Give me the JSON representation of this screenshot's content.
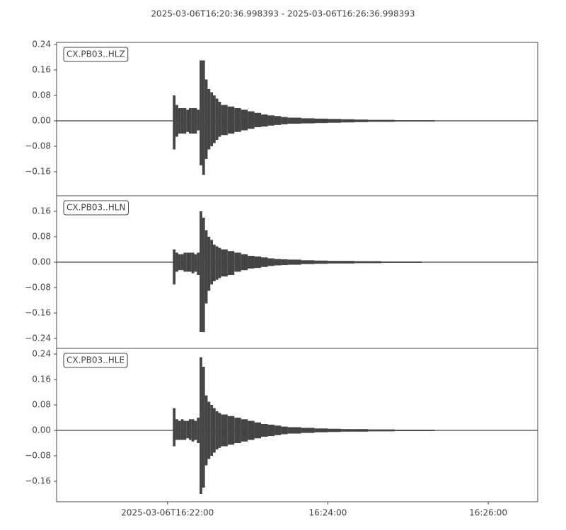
{
  "title": "2025-03-06T16:20:36.998393  -  2025-03-06T16:26:36.998393",
  "chart_data": [
    {
      "type": "waveform",
      "label": "CX.PB03..HLZ",
      "color": "#444444",
      "xlim": [
        "16:20:36.998393",
        "16:26:36.998393"
      ],
      "ylim": [
        -0.2356,
        0.2467
      ],
      "yticks": [
        {
          "value": -0.16,
          "label": "−0.16"
        },
        {
          "value": -0.08,
          "label": "−0.08"
        },
        {
          "value": 0,
          "label": "0.00"
        },
        {
          "value": 0.08,
          "label": "0.08"
        },
        {
          "value": 0.16,
          "label": "0.16"
        },
        {
          "value": 0.24,
          "label": "0.24"
        }
      ],
      "x": [
        "16:22:04",
        "16:22:06",
        "16:22:08",
        "16:22:10",
        "16:22:12",
        "16:22:14",
        "16:22:16",
        "16:22:18",
        "16:22:20",
        "16:22:22",
        "16:22:24",
        "16:22:26",
        "16:22:28",
        "16:22:30",
        "16:22:32",
        "16:22:34",
        "16:22:36",
        "16:22:38",
        "16:22:40",
        "16:22:45",
        "16:22:50",
        "16:22:55",
        "16:23:00",
        "16:23:05",
        "16:23:10",
        "16:23:15",
        "16:23:20",
        "16:23:25",
        "16:23:30",
        "16:23:40",
        "16:23:50",
        "16:24:00",
        "16:24:10",
        "16:24:20",
        "16:24:30",
        "16:24:40",
        "16:24:50",
        "16:25:00",
        "16:25:10",
        "16:25:20",
        "16:25:30",
        "16:25:40"
      ],
      "max": [
        0.08,
        0.05,
        0.04,
        0.04,
        0.04,
        0.035,
        0.04,
        0.04,
        0.04,
        0.035,
        0.19,
        0.19,
        0.13,
        0.1,
        0.09,
        0.08,
        0.07,
        0.06,
        0.05,
        0.045,
        0.04,
        0.035,
        0.03,
        0.025,
        0.02,
        0.017,
        0.015,
        0.012,
        0.01,
        0.008,
        0.007,
        0.006,
        0.005,
        0.004,
        0.003,
        0.003,
        0.002,
        0.002,
        0.002,
        0.001,
        0.001,
        0.001
      ],
      "min": [
        -0.09,
        -0.05,
        -0.04,
        -0.04,
        -0.04,
        -0.035,
        -0.04,
        -0.04,
        -0.04,
        -0.03,
        -0.14,
        -0.17,
        -0.12,
        -0.09,
        -0.08,
        -0.07,
        -0.06,
        -0.05,
        -0.045,
        -0.04,
        -0.035,
        -0.03,
        -0.025,
        -0.02,
        -0.018,
        -0.015,
        -0.013,
        -0.011,
        -0.009,
        -0.008,
        -0.007,
        -0.006,
        -0.005,
        -0.004,
        -0.003,
        -0.003,
        -0.002,
        -0.002,
        -0.002,
        -0.001,
        -0.001,
        -0.001
      ]
    },
    {
      "type": "waveform",
      "label": "CX.PB03..HLN",
      "color": "#444444",
      "xlim": [
        "16:20:36.998393",
        "16:26:36.998393"
      ],
      "ylim": [
        -0.2711,
        0.2089
      ],
      "yticks": [
        {
          "value": -0.24,
          "label": "−0.24"
        },
        {
          "value": -0.16,
          "label": "−0.16"
        },
        {
          "value": -0.08,
          "label": "−0.08"
        },
        {
          "value": 0,
          "label": "0.00"
        },
        {
          "value": 0.08,
          "label": "0.08"
        },
        {
          "value": 0.16,
          "label": "0.16"
        }
      ],
      "x": [
        "16:22:04",
        "16:22:06",
        "16:22:08",
        "16:22:10",
        "16:22:12",
        "16:22:14",
        "16:22:16",
        "16:22:18",
        "16:22:20",
        "16:22:22",
        "16:22:24",
        "16:22:26",
        "16:22:28",
        "16:22:30",
        "16:22:32",
        "16:22:34",
        "16:22:36",
        "16:22:38",
        "16:22:40",
        "16:22:45",
        "16:22:50",
        "16:22:55",
        "16:23:00",
        "16:23:05",
        "16:23:10",
        "16:23:15",
        "16:23:20",
        "16:23:25",
        "16:23:30",
        "16:23:40",
        "16:23:50",
        "16:24:00",
        "16:24:10",
        "16:24:20",
        "16:24:30",
        "16:24:40",
        "16:24:50",
        "16:25:00",
        "16:25:10",
        "16:25:20",
        "16:25:30",
        "16:25:40"
      ],
      "max": [
        0.04,
        0.03,
        0.025,
        0.025,
        0.03,
        0.03,
        0.03,
        0.03,
        0.025,
        0.03,
        0.16,
        0.14,
        0.1,
        0.08,
        0.07,
        0.055,
        0.05,
        0.045,
        0.04,
        0.035,
        0.03,
        0.025,
        0.02,
        0.018,
        0.015,
        0.012,
        0.01,
        0.009,
        0.008,
        0.006,
        0.005,
        0.004,
        0.004,
        0.003,
        0.003,
        0.002,
        0.002,
        0.002,
        0.001,
        0.001,
        0.001,
        0.001
      ],
      "min": [
        -0.07,
        -0.03,
        -0.025,
        -0.025,
        -0.03,
        -0.03,
        -0.03,
        -0.035,
        -0.03,
        -0.04,
        -0.22,
        -0.22,
        -0.13,
        -0.09,
        -0.07,
        -0.06,
        -0.055,
        -0.05,
        -0.045,
        -0.04,
        -0.03,
        -0.025,
        -0.02,
        -0.018,
        -0.015,
        -0.012,
        -0.01,
        -0.009,
        -0.008,
        -0.006,
        -0.005,
        -0.004,
        -0.004,
        -0.003,
        -0.003,
        -0.002,
        -0.002,
        -0.002,
        -0.001,
        -0.001,
        -0.001,
        -0.001
      ]
    },
    {
      "type": "waveform",
      "label": "CX.PB03..HLE",
      "color": "#444444",
      "xlim": [
        "16:20:36.998393",
        "16:26:36.998393"
      ],
      "ylim": [
        -0.2244,
        0.2578
      ],
      "yticks": [
        {
          "value": -0.16,
          "label": "−0.16"
        },
        {
          "value": -0.08,
          "label": "−0.08"
        },
        {
          "value": 0,
          "label": "0.00"
        },
        {
          "value": 0.08,
          "label": "0.08"
        },
        {
          "value": 0.16,
          "label": "0.16"
        },
        {
          "value": 0.24,
          "label": "0.24"
        }
      ],
      "xticks": [
        {
          "value": "16:22:00",
          "label": "2025-03-06T16:22:00"
        },
        "16:24:00",
        "16:26:00"
      ],
      "x": [
        "16:22:04",
        "16:22:06",
        "16:22:08",
        "16:22:10",
        "16:22:12",
        "16:22:14",
        "16:22:16",
        "16:22:18",
        "16:22:20",
        "16:22:22",
        "16:22:24",
        "16:22:26",
        "16:22:28",
        "16:22:30",
        "16:22:32",
        "16:22:34",
        "16:22:36",
        "16:22:38",
        "16:22:40",
        "16:22:45",
        "16:22:50",
        "16:22:55",
        "16:23:00",
        "16:23:05",
        "16:23:10",
        "16:23:15",
        "16:23:20",
        "16:23:25",
        "16:23:30",
        "16:23:40",
        "16:23:50",
        "16:24:00",
        "16:24:10",
        "16:24:20",
        "16:24:30",
        "16:24:40",
        "16:24:50",
        "16:25:00",
        "16:25:10",
        "16:25:20",
        "16:25:30",
        "16:25:40"
      ],
      "max": [
        0.07,
        0.035,
        0.03,
        0.035,
        0.03,
        0.03,
        0.035,
        0.035,
        0.03,
        0.04,
        0.23,
        0.2,
        0.11,
        0.09,
        0.08,
        0.07,
        0.06,
        0.055,
        0.05,
        0.045,
        0.04,
        0.035,
        0.03,
        0.025,
        0.02,
        0.018,
        0.015,
        0.012,
        0.01,
        0.008,
        0.006,
        0.005,
        0.004,
        0.004,
        0.003,
        0.003,
        0.002,
        0.002,
        0.002,
        0.001,
        0.001,
        0.001
      ],
      "min": [
        -0.05,
        -0.03,
        -0.03,
        -0.03,
        -0.03,
        -0.025,
        -0.03,
        -0.035,
        -0.03,
        -0.04,
        -0.2,
        -0.18,
        -0.11,
        -0.09,
        -0.08,
        -0.07,
        -0.06,
        -0.055,
        -0.05,
        -0.045,
        -0.04,
        -0.035,
        -0.03,
        -0.025,
        -0.02,
        -0.018,
        -0.015,
        -0.012,
        -0.01,
        -0.008,
        -0.006,
        -0.005,
        -0.004,
        -0.004,
        -0.003,
        -0.003,
        -0.002,
        -0.002,
        -0.002,
        -0.001,
        -0.001,
        -0.001
      ]
    }
  ]
}
